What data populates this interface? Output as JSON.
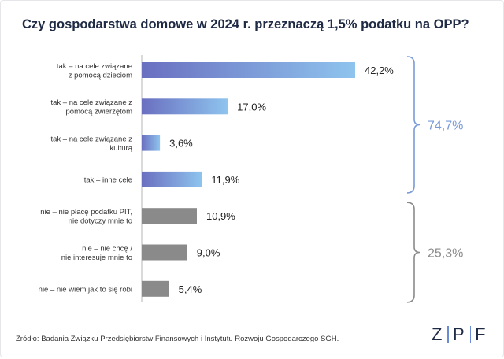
{
  "title": "Czy gospodarstwa domowe w 2024 r. przeznaczą 1,5% podatku na OPP?",
  "source": "Źródło: Badania Związku Przedsiębiorstw Finansowych i Instytutu Rozwoju Gospodarczego SGH.",
  "logo": {
    "letters": [
      "Z",
      "P",
      "F"
    ]
  },
  "colors": {
    "tak_start": "#6a6fc0",
    "tak_end": "#8ec4ee",
    "nie": "#8a8a8a",
    "group_tak": "#7a9ad8",
    "group_nie": "#8a8a8a",
    "title": "#1f2a44"
  },
  "chart_data": {
    "type": "bar",
    "orientation": "horizontal",
    "categories": [
      [
        "tak – na cele związane",
        "z pomocą dzieciom"
      ],
      [
        "tak – na cele związane z",
        "pomocą zwierzętom"
      ],
      [
        "tak – na cele związane z",
        "kulturą"
      ],
      [
        "tak – inne cele"
      ],
      [
        "nie – nie płacę podatku PIT,",
        "nie dotyczy mnie to"
      ],
      [
        "nie – nie chcę /",
        "nie interesuje mnie to"
      ],
      [
        "nie – nie wiem jak to się robi"
      ]
    ],
    "values": [
      42.2,
      17.0,
      3.6,
      11.9,
      10.9,
      9.0,
      5.4
    ],
    "value_labels": [
      "42,2%",
      "17,0%",
      "3,6%",
      "11,9%",
      "10,9%",
      "9,0%",
      "5,4%"
    ],
    "groups": [
      {
        "label": "74,7%",
        "bars": [
          0,
          3
        ],
        "kind": "tak"
      },
      {
        "label": "25,3%",
        "bars": [
          4,
          6
        ],
        "kind": "nie"
      }
    ],
    "xlim": [
      0,
      42.2
    ],
    "grid": false,
    "legend": "none"
  }
}
